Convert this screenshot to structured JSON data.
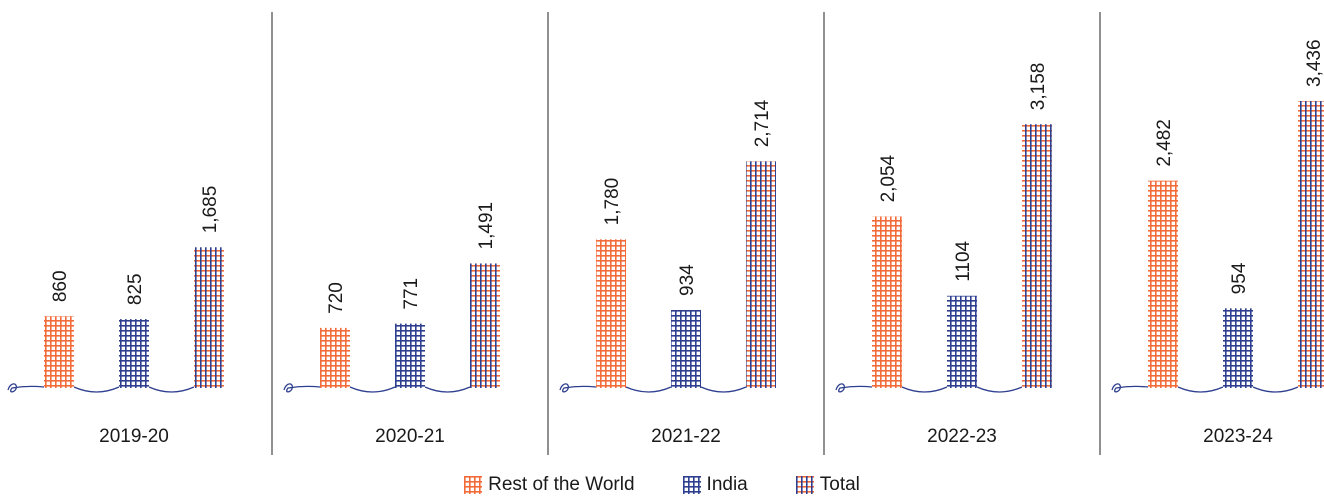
{
  "chart_data": {
    "type": "bar",
    "categories": [
      "2019-20",
      "2020-21",
      "2021-22",
      "2022-23",
      "2023-24"
    ],
    "series": [
      {
        "name": "Rest of the World",
        "color": "#f26b3a",
        "values": [
          860,
          720,
          1780,
          2054,
          2482
        ],
        "labels": [
          "860",
          "720",
          "1,780",
          "2,054",
          "2,482"
        ]
      },
      {
        "name": "India",
        "color": "#2e3f8f",
        "values": [
          825,
          771,
          934,
          1104,
          954
        ],
        "labels": [
          "825",
          "771",
          "934",
          "1104",
          "954"
        ]
      },
      {
        "name": "Total",
        "color": "#f26b3a",
        "color2": "#2e3f8f",
        "values": [
          1685,
          1491,
          2714,
          3158,
          3436
        ],
        "labels": [
          "1,685",
          "1,491",
          "2,714",
          "3,158",
          "3,436"
        ]
      }
    ],
    "ylim": [
      0,
      3436
    ],
    "legend_position": "bottom-center",
    "grid": false
  }
}
